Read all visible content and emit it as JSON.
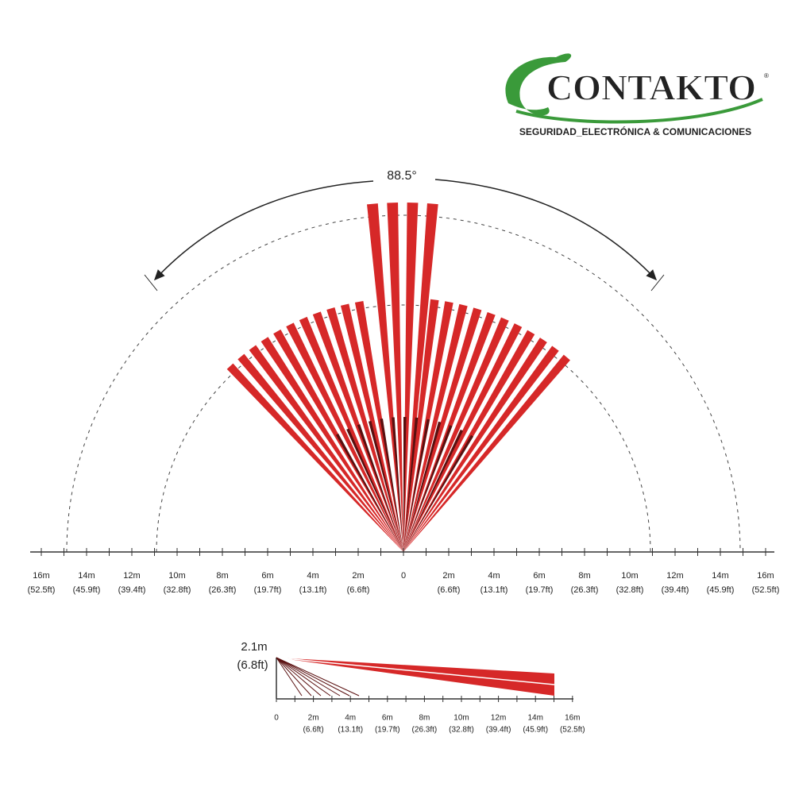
{
  "logo": {
    "name": "CONTAKTO",
    "registered": "®",
    "tagline": "SEGURIDAD_ELECTRÓNICA & COMUNICACIONES"
  },
  "top_view": {
    "angle_label": "88.5°",
    "axis_labels": [
      {
        "m": "16m",
        "ft": "(52.5ft)"
      },
      {
        "m": "14m",
        "ft": "(45.9ft)"
      },
      {
        "m": "12m",
        "ft": "(39.4ft)"
      },
      {
        "m": "10m",
        "ft": "(32.8ft)"
      },
      {
        "m": "8m",
        "ft": "(26.3ft)"
      },
      {
        "m": "6m",
        "ft": "(19.7ft)"
      },
      {
        "m": "4m",
        "ft": "(13.1ft)"
      },
      {
        "m": "2m",
        "ft": "(6.6ft)"
      },
      {
        "m": "0"
      },
      {
        "m": "2m",
        "ft": "(6.6ft)"
      },
      {
        "m": "4m",
        "ft": "(13.1ft)"
      },
      {
        "m": "6m",
        "ft": "(19.7ft)"
      },
      {
        "m": "8m",
        "ft": "(26.3ft)"
      },
      {
        "m": "10m",
        "ft": "(32.8ft)"
      },
      {
        "m": "12m",
        "ft": "(39.4ft)"
      },
      {
        "m": "14m",
        "ft": "(45.9ft)"
      },
      {
        "m": "16m",
        "ft": "(52.5ft)"
      }
    ]
  },
  "side_view": {
    "height": {
      "m": "2.1m",
      "ft": "(6.8ft)"
    },
    "axis_labels": [
      {
        "m": "0"
      },
      {
        "m": "2m",
        "ft": "(6.6ft)"
      },
      {
        "m": "4m",
        "ft": "(13.1ft)"
      },
      {
        "m": "6m",
        "ft": "(19.7ft)"
      },
      {
        "m": "8m",
        "ft": "(26.3ft)"
      },
      {
        "m": "10m",
        "ft": "(32.8ft)"
      },
      {
        "m": "12m",
        "ft": "(39.4ft)"
      },
      {
        "m": "14m",
        "ft": "(45.9ft)"
      },
      {
        "m": "16m",
        "ft": "(52.5ft)"
      }
    ]
  }
}
